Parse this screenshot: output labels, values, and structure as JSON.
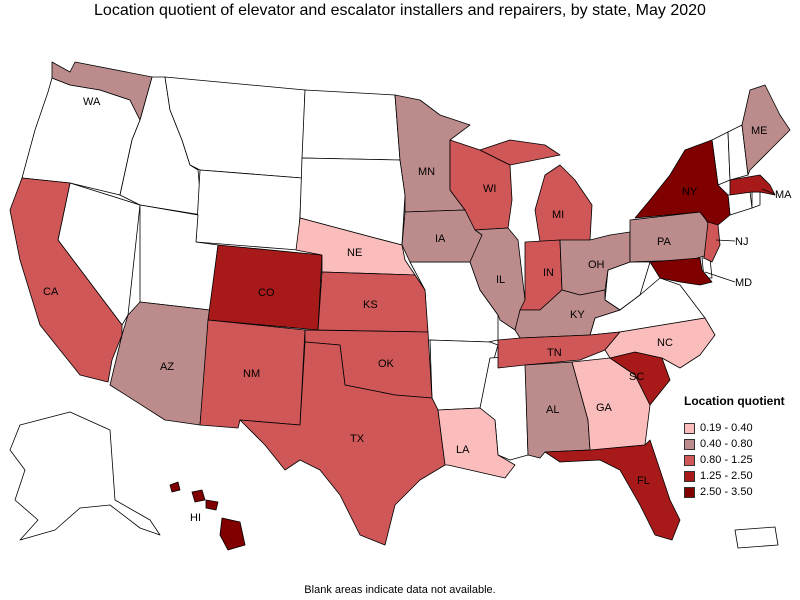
{
  "title": "Location quotient of elevator and escalator installers and repairers, by state, May 2020",
  "legend": {
    "title": "Location quotient",
    "bins": [
      {
        "label": "0.19 - 0.40",
        "color": "#fbbcbc"
      },
      {
        "label": "0.40 - 0.80",
        "color": "#bc8c8c"
      },
      {
        "label": "0.80 - 1.25",
        "color": "#d05757"
      },
      {
        "label": "1.25 - 2.50",
        "color": "#a81a1a"
      },
      {
        "label": "2.50 - 3.50",
        "color": "#800000"
      }
    ]
  },
  "footnote": "Blank areas indicate data not available.",
  "states": {
    "WA": {
      "label": "WA",
      "bin": 1
    },
    "CA": {
      "label": "CA",
      "bin": 2
    },
    "AZ": {
      "label": "AZ",
      "bin": 1
    },
    "CO": {
      "label": "CO",
      "bin": 3
    },
    "NM": {
      "label": "NM",
      "bin": 2
    },
    "NE": {
      "label": "NE",
      "bin": 0
    },
    "KS": {
      "label": "KS",
      "bin": 2
    },
    "OK": {
      "label": "OK",
      "bin": 2
    },
    "TX": {
      "label": "TX",
      "bin": 2
    },
    "MN": {
      "label": "MN",
      "bin": 1
    },
    "IA": {
      "label": "IA",
      "bin": 1
    },
    "LA": {
      "label": "LA",
      "bin": 0
    },
    "WI": {
      "label": "WI",
      "bin": 2
    },
    "IL": {
      "label": "IL",
      "bin": 1
    },
    "MI": {
      "label": "MI",
      "bin": 2
    },
    "IN": {
      "label": "IN",
      "bin": 2
    },
    "OH": {
      "label": "OH",
      "bin": 1
    },
    "KY": {
      "label": "KY",
      "bin": 1
    },
    "TN": {
      "label": "TN",
      "bin": 2
    },
    "AL": {
      "label": "AL",
      "bin": 1
    },
    "GA": {
      "label": "GA",
      "bin": 0
    },
    "FL": {
      "label": "FL",
      "bin": 3
    },
    "SC": {
      "label": "SC",
      "bin": 3
    },
    "NC": {
      "label": "NC",
      "bin": 0
    },
    "PA": {
      "label": "PA",
      "bin": 1
    },
    "NY": {
      "label": "NY",
      "bin": 4
    },
    "ME": {
      "label": "ME",
      "bin": 1
    },
    "MA": {
      "label": "MA",
      "bin": 3
    },
    "NJ": {
      "label": "NJ",
      "bin": 2
    },
    "MD": {
      "label": "MD",
      "bin": 4
    },
    "HI": {
      "label": "HI",
      "bin": 4
    }
  }
}
